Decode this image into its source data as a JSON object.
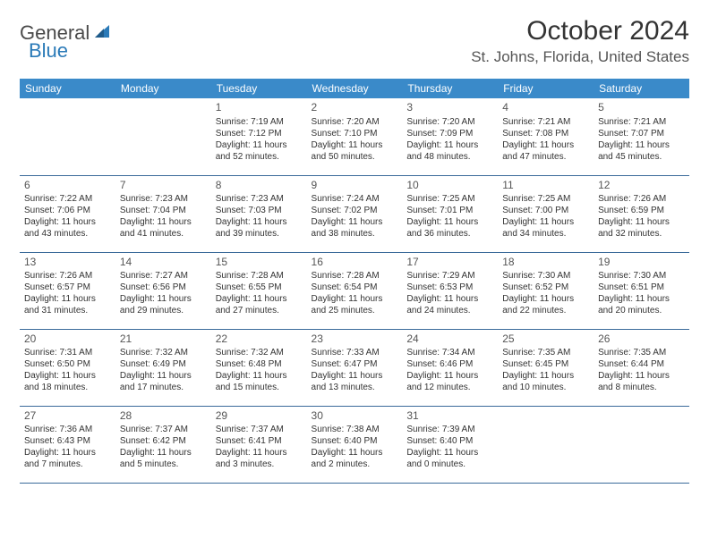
{
  "brand": {
    "general": "General",
    "blue": "Blue"
  },
  "title": {
    "month": "October 2024",
    "location": "St. Johns, Florida, United States"
  },
  "colors": {
    "header_bg": "#3a8ac9",
    "header_text": "#ffffff",
    "rule": "#3a6a9a",
    "brand_blue": "#2a7ab8"
  },
  "day_headers": [
    "Sunday",
    "Monday",
    "Tuesday",
    "Wednesday",
    "Thursday",
    "Friday",
    "Saturday"
  ],
  "weeks": [
    [
      null,
      null,
      {
        "n": "1",
        "sr": "Sunrise: 7:19 AM",
        "ss": "Sunset: 7:12 PM",
        "d1": "Daylight: 11 hours",
        "d2": "and 52 minutes."
      },
      {
        "n": "2",
        "sr": "Sunrise: 7:20 AM",
        "ss": "Sunset: 7:10 PM",
        "d1": "Daylight: 11 hours",
        "d2": "and 50 minutes."
      },
      {
        "n": "3",
        "sr": "Sunrise: 7:20 AM",
        "ss": "Sunset: 7:09 PM",
        "d1": "Daylight: 11 hours",
        "d2": "and 48 minutes."
      },
      {
        "n": "4",
        "sr": "Sunrise: 7:21 AM",
        "ss": "Sunset: 7:08 PM",
        "d1": "Daylight: 11 hours",
        "d2": "and 47 minutes."
      },
      {
        "n": "5",
        "sr": "Sunrise: 7:21 AM",
        "ss": "Sunset: 7:07 PM",
        "d1": "Daylight: 11 hours",
        "d2": "and 45 minutes."
      }
    ],
    [
      {
        "n": "6",
        "sr": "Sunrise: 7:22 AM",
        "ss": "Sunset: 7:06 PM",
        "d1": "Daylight: 11 hours",
        "d2": "and 43 minutes."
      },
      {
        "n": "7",
        "sr": "Sunrise: 7:23 AM",
        "ss": "Sunset: 7:04 PM",
        "d1": "Daylight: 11 hours",
        "d2": "and 41 minutes."
      },
      {
        "n": "8",
        "sr": "Sunrise: 7:23 AM",
        "ss": "Sunset: 7:03 PM",
        "d1": "Daylight: 11 hours",
        "d2": "and 39 minutes."
      },
      {
        "n": "9",
        "sr": "Sunrise: 7:24 AM",
        "ss": "Sunset: 7:02 PM",
        "d1": "Daylight: 11 hours",
        "d2": "and 38 minutes."
      },
      {
        "n": "10",
        "sr": "Sunrise: 7:25 AM",
        "ss": "Sunset: 7:01 PM",
        "d1": "Daylight: 11 hours",
        "d2": "and 36 minutes."
      },
      {
        "n": "11",
        "sr": "Sunrise: 7:25 AM",
        "ss": "Sunset: 7:00 PM",
        "d1": "Daylight: 11 hours",
        "d2": "and 34 minutes."
      },
      {
        "n": "12",
        "sr": "Sunrise: 7:26 AM",
        "ss": "Sunset: 6:59 PM",
        "d1": "Daylight: 11 hours",
        "d2": "and 32 minutes."
      }
    ],
    [
      {
        "n": "13",
        "sr": "Sunrise: 7:26 AM",
        "ss": "Sunset: 6:57 PM",
        "d1": "Daylight: 11 hours",
        "d2": "and 31 minutes."
      },
      {
        "n": "14",
        "sr": "Sunrise: 7:27 AM",
        "ss": "Sunset: 6:56 PM",
        "d1": "Daylight: 11 hours",
        "d2": "and 29 minutes."
      },
      {
        "n": "15",
        "sr": "Sunrise: 7:28 AM",
        "ss": "Sunset: 6:55 PM",
        "d1": "Daylight: 11 hours",
        "d2": "and 27 minutes."
      },
      {
        "n": "16",
        "sr": "Sunrise: 7:28 AM",
        "ss": "Sunset: 6:54 PM",
        "d1": "Daylight: 11 hours",
        "d2": "and 25 minutes."
      },
      {
        "n": "17",
        "sr": "Sunrise: 7:29 AM",
        "ss": "Sunset: 6:53 PM",
        "d1": "Daylight: 11 hours",
        "d2": "and 24 minutes."
      },
      {
        "n": "18",
        "sr": "Sunrise: 7:30 AM",
        "ss": "Sunset: 6:52 PM",
        "d1": "Daylight: 11 hours",
        "d2": "and 22 minutes."
      },
      {
        "n": "19",
        "sr": "Sunrise: 7:30 AM",
        "ss": "Sunset: 6:51 PM",
        "d1": "Daylight: 11 hours",
        "d2": "and 20 minutes."
      }
    ],
    [
      {
        "n": "20",
        "sr": "Sunrise: 7:31 AM",
        "ss": "Sunset: 6:50 PM",
        "d1": "Daylight: 11 hours",
        "d2": "and 18 minutes."
      },
      {
        "n": "21",
        "sr": "Sunrise: 7:32 AM",
        "ss": "Sunset: 6:49 PM",
        "d1": "Daylight: 11 hours",
        "d2": "and 17 minutes."
      },
      {
        "n": "22",
        "sr": "Sunrise: 7:32 AM",
        "ss": "Sunset: 6:48 PM",
        "d1": "Daylight: 11 hours",
        "d2": "and 15 minutes."
      },
      {
        "n": "23",
        "sr": "Sunrise: 7:33 AM",
        "ss": "Sunset: 6:47 PM",
        "d1": "Daylight: 11 hours",
        "d2": "and 13 minutes."
      },
      {
        "n": "24",
        "sr": "Sunrise: 7:34 AM",
        "ss": "Sunset: 6:46 PM",
        "d1": "Daylight: 11 hours",
        "d2": "and 12 minutes."
      },
      {
        "n": "25",
        "sr": "Sunrise: 7:35 AM",
        "ss": "Sunset: 6:45 PM",
        "d1": "Daylight: 11 hours",
        "d2": "and 10 minutes."
      },
      {
        "n": "26",
        "sr": "Sunrise: 7:35 AM",
        "ss": "Sunset: 6:44 PM",
        "d1": "Daylight: 11 hours",
        "d2": "and 8 minutes."
      }
    ],
    [
      {
        "n": "27",
        "sr": "Sunrise: 7:36 AM",
        "ss": "Sunset: 6:43 PM",
        "d1": "Daylight: 11 hours",
        "d2": "and 7 minutes."
      },
      {
        "n": "28",
        "sr": "Sunrise: 7:37 AM",
        "ss": "Sunset: 6:42 PM",
        "d1": "Daylight: 11 hours",
        "d2": "and 5 minutes."
      },
      {
        "n": "29",
        "sr": "Sunrise: 7:37 AM",
        "ss": "Sunset: 6:41 PM",
        "d1": "Daylight: 11 hours",
        "d2": "and 3 minutes."
      },
      {
        "n": "30",
        "sr": "Sunrise: 7:38 AM",
        "ss": "Sunset: 6:40 PM",
        "d1": "Daylight: 11 hours",
        "d2": "and 2 minutes."
      },
      {
        "n": "31",
        "sr": "Sunrise: 7:39 AM",
        "ss": "Sunset: 6:40 PM",
        "d1": "Daylight: 11 hours",
        "d2": "and 0 minutes."
      },
      null,
      null
    ]
  ]
}
